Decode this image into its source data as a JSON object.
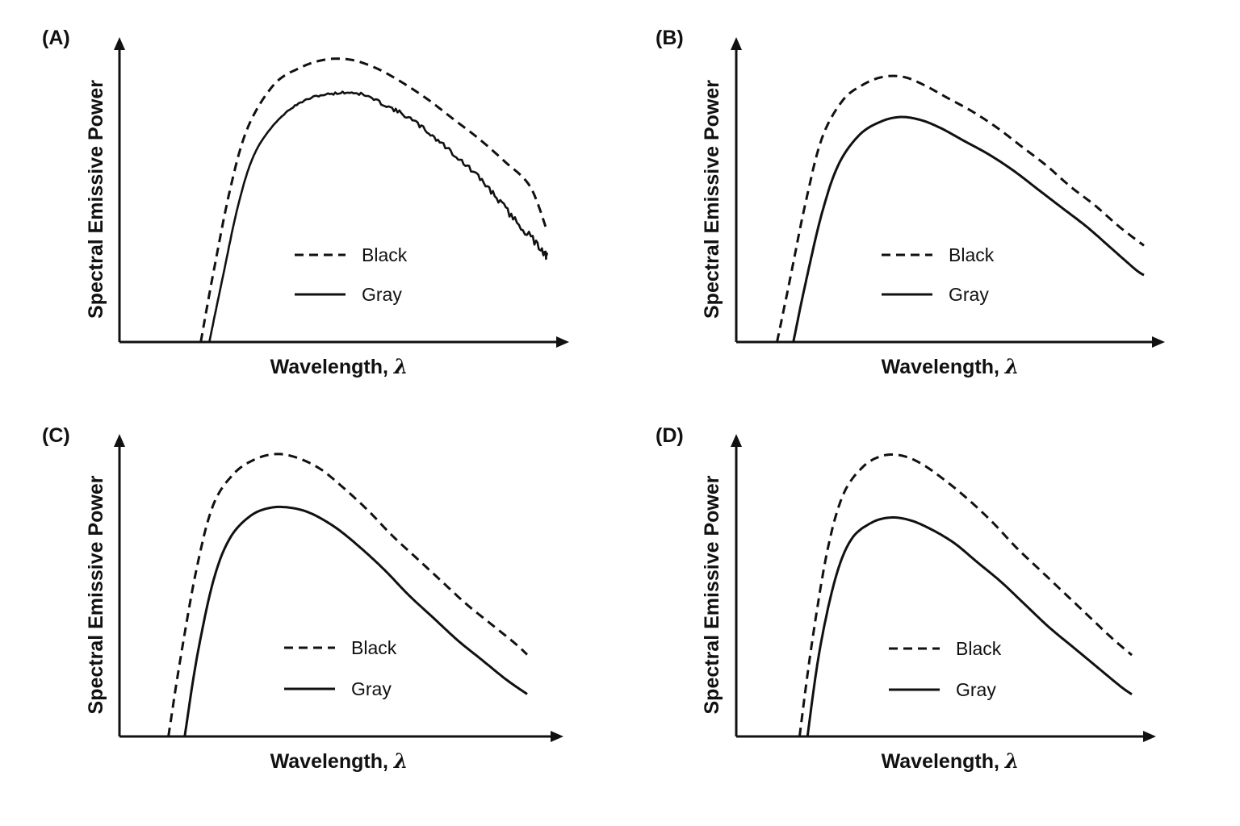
{
  "chart_data": [
    {
      "type": "line",
      "panel_label": "(A)",
      "xlabel": "Wavelength, ",
      "xlabel_symbol": "λ",
      "ylabel": "Spectral Emissive Power",
      "grid": false,
      "legend_placement": "center-right",
      "series": [
        {
          "name": "Black",
          "style": "dashed",
          "x": [
            0.19,
            0.22,
            0.26,
            0.3,
            0.36,
            0.42,
            0.48,
            0.54,
            0.6,
            0.66,
            0.72,
            0.78,
            0.84,
            0.9,
            0.96,
            1.0
          ],
          "y": [
            0,
            0.25,
            0.55,
            0.76,
            0.91,
            0.97,
            1.0,
            1.0,
            0.97,
            0.92,
            0.86,
            0.79,
            0.72,
            0.64,
            0.55,
            0.39
          ]
        },
        {
          "name": "Gray",
          "style": "solid",
          "noisy": true,
          "x": [
            0.21,
            0.24,
            0.28,
            0.32,
            0.38,
            0.44,
            0.5,
            0.56,
            0.62,
            0.68,
            0.74,
            0.8,
            0.86,
            0.92,
            0.98,
            1.0
          ],
          "y": [
            0,
            0.22,
            0.5,
            0.68,
            0.8,
            0.86,
            0.88,
            0.88,
            0.84,
            0.79,
            0.72,
            0.64,
            0.55,
            0.44,
            0.34,
            0.3
          ]
        }
      ],
      "color": "#111111"
    },
    {
      "type": "line",
      "panel_label": "(B)",
      "xlabel": "Wavelength, ",
      "xlabel_symbol": "λ",
      "ylabel": "Spectral Emissive Power",
      "grid": false,
      "legend_placement": "center-right",
      "series": [
        {
          "name": "Black",
          "style": "dashed",
          "x": [
            0.1,
            0.13,
            0.17,
            0.21,
            0.26,
            0.31,
            0.36,
            0.41,
            0.46,
            0.52,
            0.58,
            0.64,
            0.7,
            0.76,
            0.82,
            0.88,
            0.94,
            1.0
          ],
          "y": [
            0,
            0.22,
            0.52,
            0.76,
            0.9,
            0.96,
            0.99,
            0.99,
            0.96,
            0.91,
            0.86,
            0.8,
            0.73,
            0.66,
            0.58,
            0.51,
            0.43,
            0.36
          ]
        },
        {
          "name": "Gray",
          "style": "solid",
          "x": [
            0.14,
            0.17,
            0.21,
            0.25,
            0.3,
            0.35,
            0.4,
            0.45,
            0.5,
            0.56,
            0.62,
            0.68,
            0.74,
            0.8,
            0.86,
            0.92,
            0.98,
            1.0
          ],
          "y": [
            0,
            0.22,
            0.48,
            0.66,
            0.77,
            0.82,
            0.84,
            0.83,
            0.8,
            0.75,
            0.7,
            0.64,
            0.57,
            0.5,
            0.43,
            0.35,
            0.27,
            0.25
          ]
        }
      ],
      "color": "#111111"
    },
    {
      "type": "line",
      "panel_label": "(C)",
      "xlabel": "Wavelength, ",
      "xlabel_symbol": "λ",
      "ylabel": "Spectral Emissive Power",
      "grid": false,
      "legend_placement": "center-right",
      "series": [
        {
          "name": "Black",
          "style": "dashed",
          "x": [
            0.12,
            0.15,
            0.19,
            0.23,
            0.28,
            0.33,
            0.38,
            0.43,
            0.49,
            0.55,
            0.61,
            0.67,
            0.73,
            0.79,
            0.85,
            0.91,
            0.97,
            1.0
          ],
          "y": [
            0,
            0.28,
            0.6,
            0.82,
            0.93,
            0.98,
            1.0,
            0.99,
            0.95,
            0.88,
            0.8,
            0.71,
            0.63,
            0.55,
            0.47,
            0.4,
            0.33,
            0.29
          ]
        },
        {
          "name": "Gray",
          "style": "solid",
          "x": [
            0.16,
            0.19,
            0.23,
            0.27,
            0.32,
            0.37,
            0.42,
            0.47,
            0.53,
            0.59,
            0.65,
            0.71,
            0.77,
            0.83,
            0.89,
            0.95,
            1.0
          ],
          "y": [
            0,
            0.28,
            0.55,
            0.7,
            0.78,
            0.81,
            0.81,
            0.79,
            0.74,
            0.67,
            0.59,
            0.5,
            0.42,
            0.34,
            0.27,
            0.2,
            0.15
          ]
        }
      ],
      "color": "#111111"
    },
    {
      "type": "line",
      "panel_label": "(D)",
      "xlabel": "Wavelength, ",
      "xlabel_symbol": "λ",
      "ylabel": "Spectral Emissive Power",
      "grid": false,
      "legend_placement": "center-right",
      "series": [
        {
          "name": "Black",
          "style": "dashed",
          "x": [
            0.16,
            0.19,
            0.23,
            0.27,
            0.32,
            0.37,
            0.42,
            0.47,
            0.53,
            0.59,
            0.65,
            0.71,
            0.77,
            0.83,
            0.89,
            0.95,
            1.0
          ],
          "y": [
            0,
            0.32,
            0.66,
            0.86,
            0.96,
            1.0,
            1.0,
            0.97,
            0.91,
            0.84,
            0.76,
            0.67,
            0.59,
            0.51,
            0.43,
            0.35,
            0.29
          ]
        },
        {
          "name": "Gray",
          "style": "solid",
          "x": [
            0.18,
            0.21,
            0.25,
            0.29,
            0.34,
            0.39,
            0.44,
            0.49,
            0.55,
            0.61,
            0.67,
            0.73,
            0.79,
            0.85,
            0.91,
            0.97,
            1.0
          ],
          "y": [
            0,
            0.3,
            0.56,
            0.7,
            0.76,
            0.78,
            0.77,
            0.74,
            0.69,
            0.62,
            0.55,
            0.47,
            0.39,
            0.32,
            0.25,
            0.18,
            0.15
          ]
        }
      ],
      "color": "#111111"
    }
  ]
}
